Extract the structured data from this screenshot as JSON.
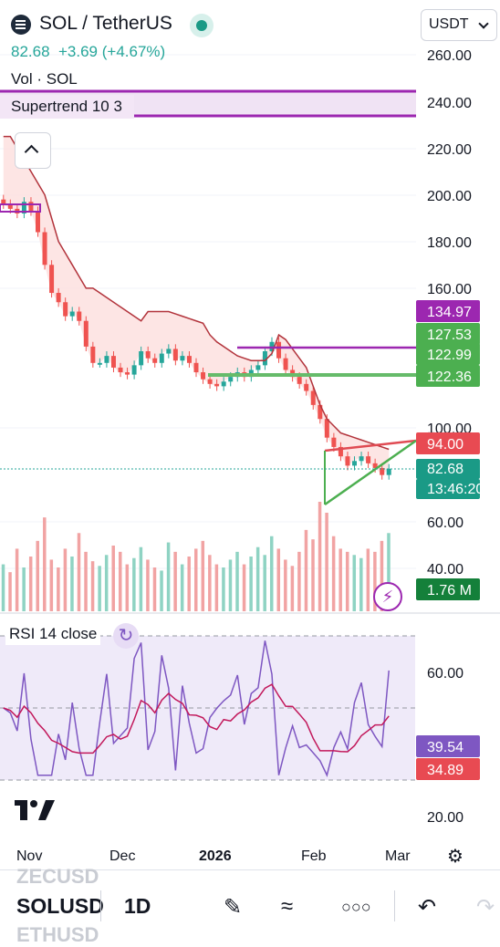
{
  "header": {
    "pair": "SOL / TetherUS",
    "price": "82.68",
    "change": "+3.69 (+4.67%)",
    "currency": "USDT",
    "vol": "Vol · SOL",
    "supertrend": "Supertrend 10 3"
  },
  "axis": {
    "price_ticks": [
      "260.00",
      "240.00",
      "220.00",
      "200.00",
      "180.00",
      "160.00",
      "100.00",
      "60.00",
      "40.00"
    ],
    "rsi_ticks": [
      "60.00",
      "20.00"
    ],
    "x_ticks": [
      "Nov",
      "Dec",
      "2026",
      "Feb",
      "Mar"
    ]
  },
  "tags": {
    "t1": "134.97",
    "t2": "127.53",
    "t3": "122.99",
    "t4": "122.36",
    "t5": "94.00",
    "t6": "82.68",
    "t7": "13:46:20",
    "t8": "1.76 M",
    "r1": "39.54",
    "r2": "34.89"
  },
  "rsi": {
    "label": "RSI 14 close"
  },
  "bottom": {
    "symbol": "SOLUSD",
    "ghost_above": "ZECUSD",
    "ghost_below": "ETHUSD",
    "timeframe": "1D"
  },
  "colors": {
    "up": "#26a69a",
    "down": "#ef5350",
    "supertrend_up": "#4caf50",
    "supertrend_down": "#b2333b",
    "purple": "#9c27b0",
    "rsi": "#7e57c2"
  },
  "chart_data": {
    "type": "candlestick",
    "y_range": [
      40,
      260
    ],
    "rsi_range": [
      20,
      80
    ],
    "closes": [
      196,
      194,
      192,
      197,
      193,
      184,
      170,
      158,
      154,
      148,
      150,
      146,
      135,
      128,
      128,
      131,
      126,
      124,
      123,
      127,
      133,
      130,
      128,
      132,
      134,
      129,
      131,
      128,
      124,
      121,
      119,
      118,
      120,
      122,
      124,
      122,
      125,
      127,
      133,
      137,
      130,
      125,
      122,
      119,
      116,
      110,
      104,
      96,
      92,
      88,
      84,
      86,
      88,
      85,
      83,
      80,
      82.68
    ],
    "volumes": [
      30,
      25,
      40,
      28,
      35,
      45,
      60,
      33,
      28,
      40,
      35,
      50,
      38,
      32,
      29,
      36,
      42,
      38,
      30,
      34,
      41,
      33,
      28,
      26,
      44,
      38,
      30,
      35,
      40,
      45,
      36,
      30,
      28,
      33,
      38,
      30,
      35,
      41,
      36,
      48,
      40,
      33,
      29,
      38,
      52,
      46,
      70,
      63,
      48,
      40,
      38,
      36,
      34,
      40,
      38,
      45,
      50
    ],
    "supertrend": [
      225,
      225,
      220,
      215,
      210,
      205,
      200,
      190,
      180,
      175,
      170,
      165,
      160,
      160,
      158,
      156,
      154,
      152,
      150,
      148,
      146,
      150,
      150,
      150,
      150,
      149,
      148,
      147,
      146,
      145,
      140,
      137,
      135,
      133,
      131,
      130,
      129,
      129,
      129,
      132,
      140,
      138,
      134,
      130,
      126,
      118,
      110,
      104,
      101,
      98,
      97,
      96,
      95,
      94,
      93,
      92,
      91
    ]
  }
}
